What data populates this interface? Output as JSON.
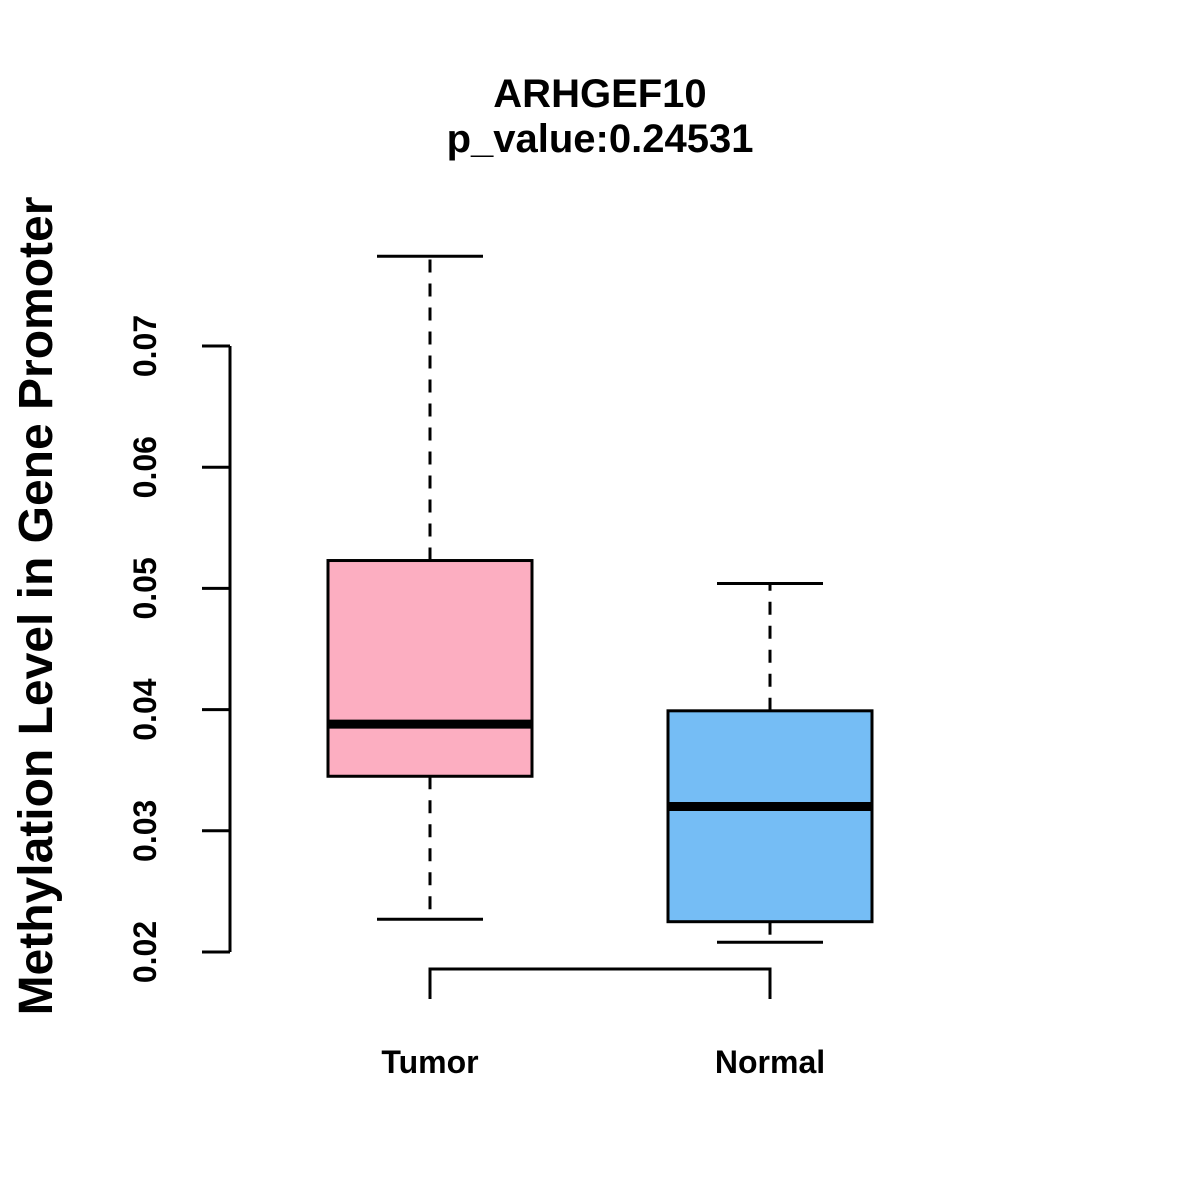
{
  "page": {
    "background_color": "#FFFFFF",
    "foreground_color": "#000000"
  },
  "chart_data": {
    "type": "boxplot",
    "title": "ARHGEF10",
    "subtitle": "p_value:0.24531",
    "p_value": 0.24531,
    "gene": "ARHGEF10",
    "xlabel": "",
    "ylabel": "Methylation Level in Gene Promoter",
    "categories": [
      "Tumor",
      "Normal"
    ],
    "y_ticks": [
      0.02,
      0.03,
      0.04,
      0.05,
      0.06,
      0.07
    ],
    "ylim": [
      0.02,
      0.078
    ],
    "grid": false,
    "legend": "none",
    "box_border_color": "#000000",
    "whisker_style": "dashed",
    "series": [
      {
        "name": "Tumor",
        "fill_color": "#FCAEC1",
        "stats": {
          "lower_whisker": 0.0227,
          "q1": 0.0345,
          "median": 0.0388,
          "q3": 0.0523,
          "upper_whisker": 0.0774
        },
        "outliers": []
      },
      {
        "name": "Normal",
        "fill_color": "#75BDF5",
        "stats": {
          "lower_whisker": 0.0208,
          "q1": 0.0225,
          "median": 0.032,
          "q3": 0.0399,
          "upper_whisker": 0.0504
        },
        "outliers": []
      }
    ]
  }
}
